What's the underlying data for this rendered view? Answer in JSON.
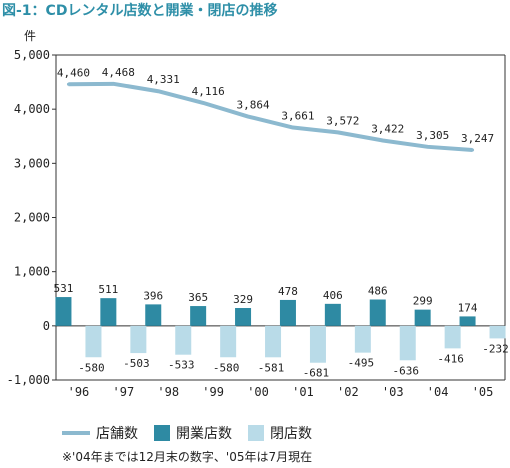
{
  "title": "図-1：CDレンタル店数と開業・閉店の推移",
  "note": "※'04年までは12月末の数字、'05年は7月現在",
  "colors": {
    "line": "#8cb9cf",
    "open": "#2e8aa3",
    "close": "#b9dbe8",
    "title": "#2e8fa8"
  },
  "chart_data": {
    "type": "bar",
    "categories": [
      "'96",
      "'97",
      "'98",
      "'99",
      "'00",
      "'01",
      "'02",
      "'03",
      "'04",
      "'05"
    ],
    "ylabel": "件",
    "ylim": [
      -1000,
      5000
    ],
    "yticks": [
      "5,000",
      "4,000",
      "3,000",
      "2,000",
      "1,000",
      "0",
      "-1,000"
    ],
    "legend_position": "bottom",
    "series": [
      {
        "name": "店舗数",
        "type": "line",
        "values": [
          4460,
          4468,
          4331,
          4116,
          3864,
          3661,
          3572,
          3422,
          3305,
          3247
        ],
        "labels": [
          "4,460",
          "4,468",
          "4,331",
          "4,116",
          "3,864",
          "3,661",
          "3,572",
          "3,422",
          "3,305",
          "3,247"
        ]
      },
      {
        "name": "開業店数",
        "type": "bar",
        "values": [
          531,
          511,
          396,
          365,
          329,
          478,
          406,
          486,
          299,
          174
        ],
        "labels": [
          "531",
          "511",
          "396",
          "365",
          "329",
          "478",
          "406",
          "486",
          "299",
          "174"
        ]
      },
      {
        "name": "閉店数",
        "type": "bar",
        "values": [
          -580,
          -503,
          -533,
          -580,
          -581,
          -681,
          -495,
          -636,
          -416,
          -232
        ],
        "labels": [
          "-580",
          "-503",
          "-533",
          "-580",
          "-581",
          "-681",
          "-495",
          "-636",
          "-416",
          "-232"
        ]
      }
    ]
  }
}
